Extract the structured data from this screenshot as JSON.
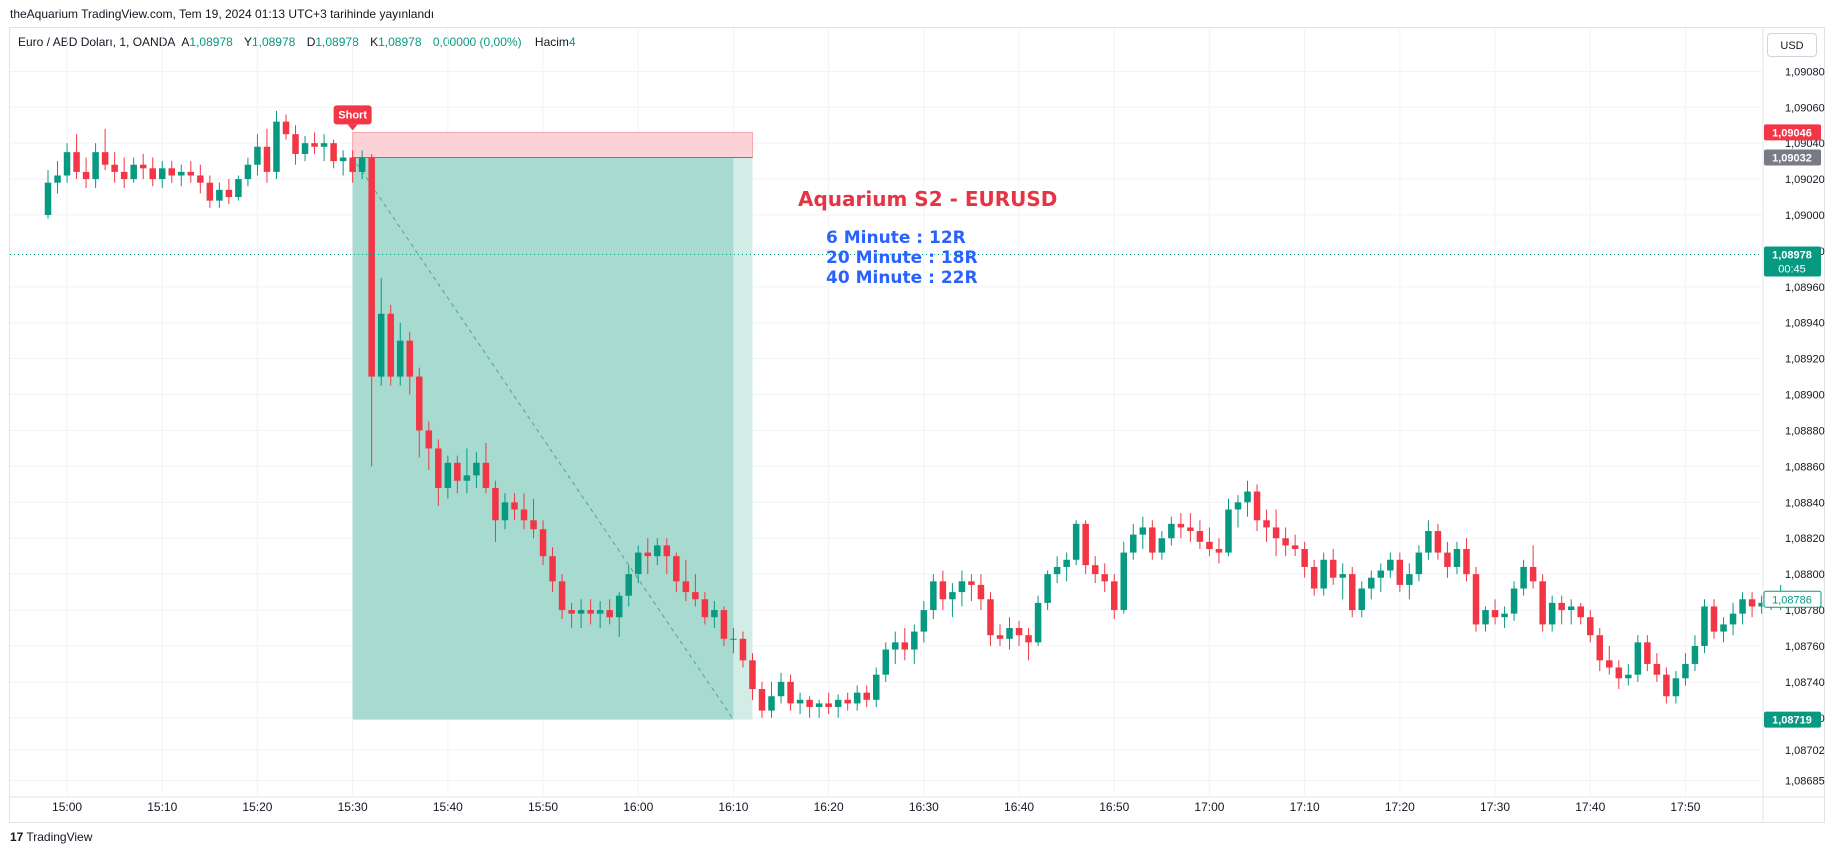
{
  "header": {
    "published": "theAquarium TradingView.com, Tem 19, 2024 01:13 UTC+3 tarihinde yayınlandı"
  },
  "symbol": {
    "name": "Euro / ABD Doları, 1, OANDA",
    "open_label": "A",
    "open": "1,08978",
    "high_label": "Y",
    "high": "1,08978",
    "low_label": "D",
    "low": "1,08978",
    "close_label": "K",
    "close": "1,08978",
    "change": "0,00000 (0,00%)",
    "volume_label": "Hacim",
    "volume": "4"
  },
  "currency_button": "USD",
  "footer": {
    "logo_mark": "17",
    "logo_text": "TradingView"
  },
  "colors": {
    "up": "#089981",
    "down": "#f23645",
    "grid": "#f0f3fa",
    "target_zone": "#a7dbd0",
    "stop_zone": "#fbd3d7",
    "annotation_title": "#e53544",
    "annotation_text": "#2962ff"
  },
  "chart_data": {
    "type": "candlestick",
    "ylim": [
      1.08677,
      1.09093
    ],
    "y_ticks": [
      "1,09080",
      "1,09060",
      "1,09040",
      "1,09020",
      "1,09000",
      "1,08980",
      "1,08960",
      "1,08940",
      "1,08920",
      "1,08900",
      "1,08880",
      "1,08860",
      "1,08840",
      "1,08820",
      "1,08800",
      "1,08780",
      "1,08760",
      "1,08740",
      "1,08720",
      "1,08702",
      "1,08685"
    ],
    "x_ticks": [
      "15:00",
      "15:10",
      "15:20",
      "15:30",
      "15:40",
      "15:50",
      "16:00",
      "16:10",
      "16:20",
      "16:30",
      "16:40",
      "16:50",
      "17:00",
      "17:10",
      "17:20",
      "17:30",
      "17:40",
      "17:50"
    ],
    "x_start": "14:58",
    "candles": [
      [
        1.09,
        1.09025,
        1.08998,
        1.09018
      ],
      [
        1.09018,
        1.0903,
        1.09012,
        1.09022
      ],
      [
        1.09022,
        1.0904,
        1.09018,
        1.09035
      ],
      [
        1.09035,
        1.09045,
        1.0902,
        1.09024
      ],
      [
        1.09024,
        1.09032,
        1.09015,
        1.0902
      ],
      [
        1.0902,
        1.0904,
        1.09015,
        1.09035
      ],
      [
        1.09035,
        1.09048,
        1.09025,
        1.09028
      ],
      [
        1.09028,
        1.09035,
        1.09018,
        1.09024
      ],
      [
        1.09024,
        1.09032,
        1.09015,
        1.0902
      ],
      [
        1.0902,
        1.09032,
        1.09018,
        1.09028
      ],
      [
        1.09028,
        1.09034,
        1.0902,
        1.09026
      ],
      [
        1.09026,
        1.09032,
        1.09016,
        1.0902
      ],
      [
        1.0902,
        1.0903,
        1.09015,
        1.09026
      ],
      [
        1.09026,
        1.0903,
        1.09018,
        1.09022
      ],
      [
        1.09022,
        1.09028,
        1.09016,
        1.09024
      ],
      [
        1.09024,
        1.0903,
        1.09018,
        1.09022
      ],
      [
        1.09022,
        1.09028,
        1.09012,
        1.09018
      ],
      [
        1.09018,
        1.09022,
        1.09004,
        1.09008
      ],
      [
        1.09008,
        1.09018,
        1.09004,
        1.09014
      ],
      [
        1.09014,
        1.0902,
        1.09006,
        1.0901
      ],
      [
        1.0901,
        1.09022,
        1.09008,
        1.0902
      ],
      [
        1.0902,
        1.09032,
        1.09016,
        1.09028
      ],
      [
        1.09028,
        1.09045,
        1.09022,
        1.09038
      ],
      [
        1.09038,
        1.09048,
        1.09018,
        1.09024
      ],
      [
        1.09024,
        1.09058,
        1.0902,
        1.09052
      ],
      [
        1.09052,
        1.09056,
        1.09042,
        1.09045
      ],
      [
        1.09045,
        1.0905,
        1.09028,
        1.09034
      ],
      [
        1.09034,
        1.09044,
        1.0903,
        1.0904
      ],
      [
        1.0904,
        1.09046,
        1.09034,
        1.09038
      ],
      [
        1.09038,
        1.09045,
        1.0903,
        1.0904
      ],
      [
        1.0904,
        1.09042,
        1.09026,
        1.0903
      ],
      [
        1.0903,
        1.09036,
        1.09022,
        1.09032
      ],
      [
        1.09032,
        1.09036,
        1.09018,
        1.09024
      ],
      [
        1.09024,
        1.09036,
        1.0902,
        1.09032
      ],
      [
        1.09032,
        1.09034,
        1.0886,
        1.0891
      ],
      [
        1.0891,
        1.08965,
        1.08905,
        1.08945
      ],
      [
        1.08945,
        1.0895,
        1.08905,
        1.0891
      ],
      [
        1.0891,
        1.0894,
        1.08905,
        1.0893
      ],
      [
        1.0893,
        1.08935,
        1.089,
        1.0891
      ],
      [
        1.0891,
        1.08915,
        1.08865,
        1.0888
      ],
      [
        1.0888,
        1.08885,
        1.08858,
        1.0887
      ],
      [
        1.0887,
        1.08875,
        1.08838,
        1.08848
      ],
      [
        1.08848,
        1.08866,
        1.08842,
        1.08862
      ],
      [
        1.08862,
        1.08866,
        1.08845,
        1.08852
      ],
      [
        1.08852,
        1.0887,
        1.08845,
        1.08855
      ],
      [
        1.08855,
        1.08868,
        1.08848,
        1.08862
      ],
      [
        1.08862,
        1.08873,
        1.08845,
        1.08848
      ],
      [
        1.08848,
        1.08852,
        1.08818,
        1.0883
      ],
      [
        1.0883,
        1.08845,
        1.08825,
        1.0884
      ],
      [
        1.0884,
        1.08845,
        1.0883,
        1.08836
      ],
      [
        1.08836,
        1.08845,
        1.08825,
        1.0883
      ],
      [
        1.0883,
        1.08842,
        1.0882,
        1.08825
      ],
      [
        1.08825,
        1.0883,
        1.08805,
        1.0881
      ],
      [
        1.0881,
        1.08815,
        1.0879,
        1.08796
      ],
      [
        1.08796,
        1.088,
        1.08775,
        1.0878
      ],
      [
        1.0878,
        1.08784,
        1.0877,
        1.08778
      ],
      [
        1.08778,
        1.08786,
        1.0877,
        1.0878
      ],
      [
        1.0878,
        1.08786,
        1.08772,
        1.08778
      ],
      [
        1.08778,
        1.08785,
        1.0877,
        1.0878
      ],
      [
        1.0878,
        1.08786,
        1.08772,
        1.08776
      ],
      [
        1.08776,
        1.0879,
        1.08765,
        1.08788
      ],
      [
        1.08788,
        1.08805,
        1.08782,
        1.088
      ],
      [
        1.088,
        1.08816,
        1.08795,
        1.08812
      ],
      [
        1.08812,
        1.0882,
        1.088,
        1.0881
      ],
      [
        1.0881,
        1.0882,
        1.08805,
        1.08816
      ],
      [
        1.08816,
        1.0882,
        1.088,
        1.0881
      ],
      [
        1.0881,
        1.08812,
        1.0879,
        1.08796
      ],
      [
        1.08796,
        1.08808,
        1.08785,
        1.0879
      ],
      [
        1.0879,
        1.088,
        1.08782,
        1.08786
      ],
      [
        1.08786,
        1.0879,
        1.08772,
        1.08776
      ],
      [
        1.08776,
        1.08785,
        1.0877,
        1.0878
      ],
      [
        1.0878,
        1.08782,
        1.0876,
        1.08764
      ],
      [
        1.08764,
        1.0877,
        1.08756,
        1.08764
      ],
      [
        1.08764,
        1.08768,
        1.08748,
        1.08752
      ],
      [
        1.08752,
        1.08756,
        1.0873,
        1.08736
      ],
      [
        1.08736,
        1.0874,
        1.0872,
        1.08724
      ],
      [
        1.08724,
        1.0874,
        1.0872,
        1.08732
      ],
      [
        1.08732,
        1.08745,
        1.08728,
        1.0874
      ],
      [
        1.0874,
        1.08744,
        1.08724,
        1.08728
      ],
      [
        1.08728,
        1.08734,
        1.08722,
        1.0873
      ],
      [
        1.0873,
        1.08732,
        1.0872,
        1.08726
      ],
      [
        1.08726,
        1.0873,
        1.0872,
        1.08728
      ],
      [
        1.08728,
        1.08734,
        1.08722,
        1.08726
      ],
      [
        1.08726,
        1.08733,
        1.0872,
        1.0873
      ],
      [
        1.0873,
        1.08734,
        1.08724,
        1.08728
      ],
      [
        1.08728,
        1.08738,
        1.08724,
        1.08734
      ],
      [
        1.08734,
        1.08738,
        1.08726,
        1.0873
      ],
      [
        1.0873,
        1.08748,
        1.08726,
        1.08744
      ],
      [
        1.08744,
        1.08762,
        1.0874,
        1.08758
      ],
      [
        1.08758,
        1.08768,
        1.0875,
        1.08762
      ],
      [
        1.08762,
        1.0877,
        1.08752,
        1.08758
      ],
      [
        1.08758,
        1.08772,
        1.0875,
        1.08768
      ],
      [
        1.08768,
        1.08785,
        1.08762,
        1.0878
      ],
      [
        1.0878,
        1.088,
        1.08775,
        1.08796
      ],
      [
        1.08796,
        1.08802,
        1.0878,
        1.08786
      ],
      [
        1.08786,
        1.08795,
        1.08776,
        1.0879
      ],
      [
        1.0879,
        1.08802,
        1.08782,
        1.08796
      ],
      [
        1.08796,
        1.088,
        1.08785,
        1.08794
      ],
      [
        1.08794,
        1.088,
        1.0878,
        1.08786
      ],
      [
        1.08786,
        1.0879,
        1.0876,
        1.08766
      ],
      [
        1.08766,
        1.08772,
        1.0876,
        1.08764
      ],
      [
        1.08764,
        1.08776,
        1.08758,
        1.0877
      ],
      [
        1.0877,
        1.08774,
        1.0876,
        1.08766
      ],
      [
        1.08766,
        1.0877,
        1.08752,
        1.08762
      ],
      [
        1.08762,
        1.08788,
        1.0876,
        1.08784
      ],
      [
        1.08784,
        1.08802,
        1.0878,
        1.088
      ],
      [
        1.088,
        1.0881,
        1.08795,
        1.08804
      ],
      [
        1.08804,
        1.08812,
        1.08796,
        1.08808
      ],
      [
        1.08808,
        1.0883,
        1.08805,
        1.08828
      ],
      [
        1.08828,
        1.0883,
        1.088,
        1.08805
      ],
      [
        1.08805,
        1.0881,
        1.08795,
        1.088
      ],
      [
        1.088,
        1.08806,
        1.0879,
        1.08796
      ],
      [
        1.08796,
        1.088,
        1.08775,
        1.0878
      ],
      [
        1.0878,
        1.08818,
        1.08778,
        1.08812
      ],
      [
        1.08812,
        1.08828,
        1.08808,
        1.08822
      ],
      [
        1.08822,
        1.08832,
        1.08814,
        1.08826
      ],
      [
        1.08826,
        1.0883,
        1.08808,
        1.08812
      ],
      [
        1.08812,
        1.08824,
        1.08808,
        1.0882
      ],
      [
        1.0882,
        1.08832,
        1.08816,
        1.08828
      ],
      [
        1.08828,
        1.08834,
        1.0882,
        1.08826
      ],
      [
        1.08826,
        1.08834,
        1.08818,
        1.08824
      ],
      [
        1.08824,
        1.0883,
        1.08814,
        1.08818
      ],
      [
        1.08818,
        1.08826,
        1.0881,
        1.08814
      ],
      [
        1.08814,
        1.0882,
        1.08806,
        1.08812
      ],
      [
        1.08812,
        1.08842,
        1.0881,
        1.08836
      ],
      [
        1.08836,
        1.08844,
        1.08826,
        1.0884
      ],
      [
        1.0884,
        1.08852,
        1.08832,
        1.08846
      ],
      [
        1.08846,
        1.0885,
        1.08824,
        1.0883
      ],
      [
        1.0883,
        1.08836,
        1.08818,
        1.08826
      ],
      [
        1.08826,
        1.08836,
        1.0881,
        1.0882
      ],
      [
        1.0882,
        1.08826,
        1.0881,
        1.08816
      ],
      [
        1.08816,
        1.08822,
        1.0881,
        1.08814
      ],
      [
        1.08814,
        1.08818,
        1.08798,
        1.08804
      ],
      [
        1.08804,
        1.08808,
        1.08788,
        1.08792
      ],
      [
        1.08792,
        1.08812,
        1.08788,
        1.08808
      ],
      [
        1.08808,
        1.08814,
        1.08794,
        1.08798
      ],
      [
        1.08798,
        1.08806,
        1.08786,
        1.088
      ],
      [
        1.088,
        1.08804,
        1.08776,
        1.0878
      ],
      [
        1.0878,
        1.08796,
        1.08776,
        1.08792
      ],
      [
        1.08792,
        1.08802,
        1.08786,
        1.08798
      ],
      [
        1.08798,
        1.08806,
        1.0879,
        1.08802
      ],
      [
        1.08802,
        1.08812,
        1.08798,
        1.08808
      ],
      [
        1.08808,
        1.08812,
        1.0879,
        1.08794
      ],
      [
        1.08794,
        1.08806,
        1.08786,
        1.088
      ],
      [
        1.088,
        1.08816,
        1.08796,
        1.08812
      ],
      [
        1.08812,
        1.0883,
        1.08808,
        1.08824
      ],
      [
        1.08824,
        1.08828,
        1.08808,
        1.08812
      ],
      [
        1.08812,
        1.08818,
        1.08798,
        1.08804
      ],
      [
        1.08804,
        1.08818,
        1.088,
        1.08814
      ],
      [
        1.08814,
        1.0882,
        1.08796,
        1.088
      ],
      [
        1.088,
        1.08804,
        1.08768,
        1.08772
      ],
      [
        1.08772,
        1.08782,
        1.08768,
        1.0878
      ],
      [
        1.0878,
        1.08786,
        1.08772,
        1.08776
      ],
      [
        1.08776,
        1.08782,
        1.0877,
        1.08778
      ],
      [
        1.08778,
        1.08796,
        1.08774,
        1.08792
      ],
      [
        1.08792,
        1.08808,
        1.08788,
        1.08804
      ],
      [
        1.08804,
        1.08816,
        1.08792,
        1.08796
      ],
      [
        1.08796,
        1.088,
        1.08768,
        1.08772
      ],
      [
        1.08772,
        1.08788,
        1.08768,
        1.08784
      ],
      [
        1.08784,
        1.08788,
        1.08772,
        1.0878
      ],
      [
        1.0878,
        1.08786,
        1.08772,
        1.08782
      ],
      [
        1.08782,
        1.08784,
        1.08772,
        1.08776
      ],
      [
        1.08776,
        1.0878,
        1.08762,
        1.08766
      ],
      [
        1.08766,
        1.0877,
        1.08746,
        1.08752
      ],
      [
        1.08752,
        1.0876,
        1.08744,
        1.08748
      ],
      [
        1.08748,
        1.08752,
        1.08736,
        1.08742
      ],
      [
        1.08742,
        1.0875,
        1.08738,
        1.08744
      ],
      [
        1.08744,
        1.08766,
        1.0874,
        1.08762
      ],
      [
        1.08762,
        1.08766,
        1.08746,
        1.0875
      ],
      [
        1.0875,
        1.08756,
        1.0874,
        1.08744
      ],
      [
        1.08744,
        1.08748,
        1.08728,
        1.08732
      ],
      [
        1.08732,
        1.08746,
        1.08728,
        1.08742
      ],
      [
        1.08742,
        1.08756,
        1.08738,
        1.0875
      ],
      [
        1.0875,
        1.08766,
        1.08746,
        1.0876
      ],
      [
        1.0876,
        1.08786,
        1.08756,
        1.08782
      ],
      [
        1.08782,
        1.08786,
        1.08764,
        1.08768
      ],
      [
        1.08768,
        1.08776,
        1.08762,
        1.08772
      ],
      [
        1.08772,
        1.08784,
        1.08766,
        1.08778
      ],
      [
        1.08778,
        1.0879,
        1.08772,
        1.08786
      ],
      [
        1.08786,
        1.0879,
        1.08776,
        1.08782
      ],
      [
        1.08782,
        1.08788,
        1.08778,
        1.08784
      ],
      [
        1.08784,
        1.08788,
        1.0878,
        1.08786
      ],
      [
        1.08786,
        1.08794,
        1.0878,
        1.08786
      ]
    ],
    "position": {
      "label": "Short",
      "entry": 1.09032,
      "stop": 1.09046,
      "target": 1.08719,
      "start_time": "15:30",
      "end_time": "16:12",
      "fill_end_time": "16:10"
    },
    "current_price": 1.08978,
    "price_tags": [
      {
        "price": "1,09046",
        "bg": "#f23645"
      },
      {
        "price": "1,09032",
        "bg": "#787b86"
      },
      {
        "price": "1,08978",
        "sub": "00:45",
        "bg": "#089981"
      },
      {
        "price": "1,08786",
        "bg": "#ffffff",
        "fg": "#089981",
        "border": "#089981"
      },
      {
        "price": "1,08719",
        "bg": "#089981"
      }
    ],
    "annotation": {
      "title": "Aquarium S2 - EURUSD",
      "lines": [
        "6 Minute : 12R",
        "20 Minute : 18R",
        "40 Minute : 22R"
      ]
    }
  }
}
